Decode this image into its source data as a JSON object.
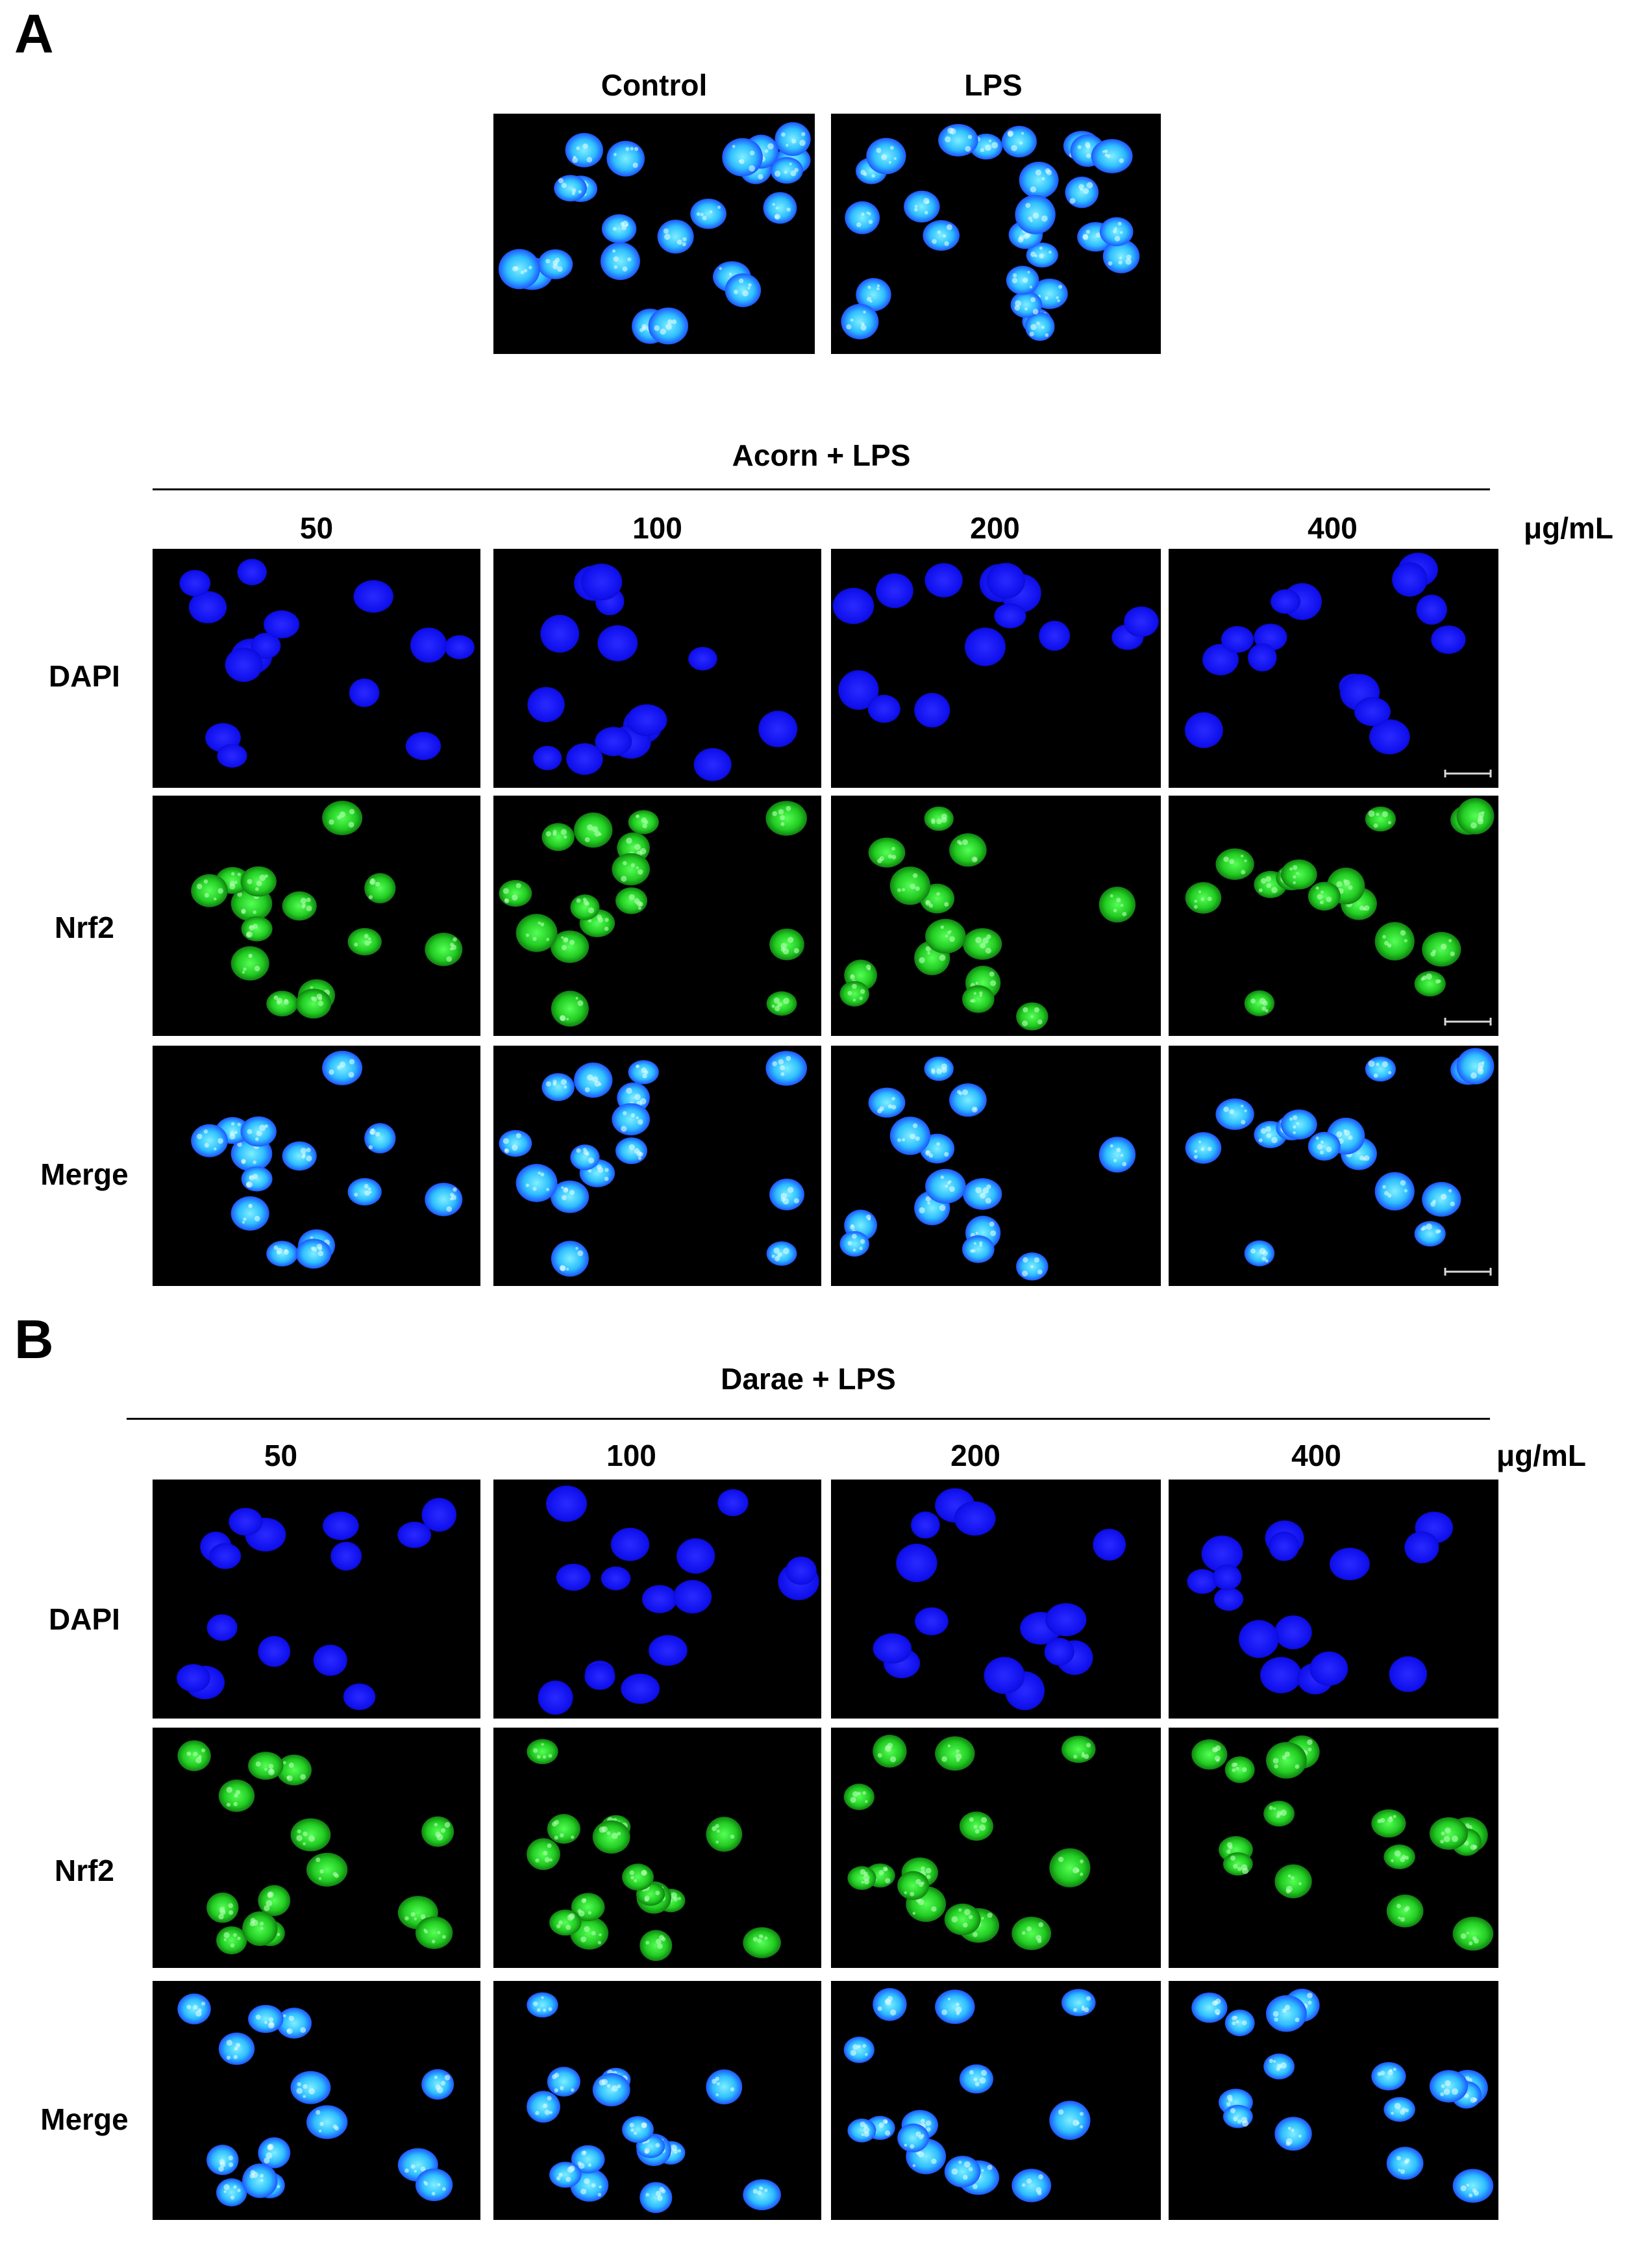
{
  "panel_a": {
    "letter": "A",
    "top_labels": [
      "Control",
      "LPS"
    ],
    "group_title": "Acorn + LPS",
    "doses": [
      "50",
      "100",
      "200",
      "400"
    ],
    "unit": "μg/mL",
    "rows": [
      "DAPI",
      "Nrf2",
      "Merge"
    ]
  },
  "panel_b": {
    "letter": "B",
    "group_title": "Darae + LPS",
    "doses": [
      "50",
      "100",
      "200",
      "400"
    ],
    "unit": "μg/mL",
    "rows": [
      "DAPI",
      "Nrf2",
      "Merge"
    ]
  },
  "colors": {
    "dapi": "#1a1aff",
    "nrf2": "#22dd22",
    "merge_core": "#33ccff",
    "merge_edge": "#1a3cff",
    "background": "#000000"
  }
}
